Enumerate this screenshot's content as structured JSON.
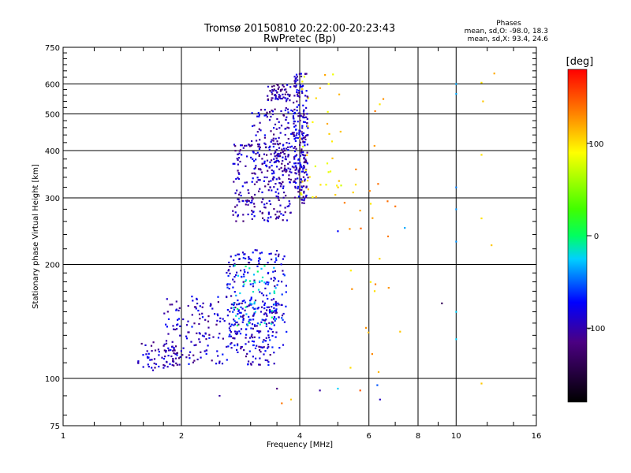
{
  "chart_data": {
    "type": "scatter",
    "title": "Tromsø 20150810 20:22:00-20:23:43",
    "subtitle": "RwPretec (Bp)",
    "xlabel": "Frequency [MHz]",
    "ylabel": "Stationary phase Virtual Height [km]",
    "x_scale": "log",
    "y_scale": "log",
    "xlim": [
      1,
      16
    ],
    "ylim": [
      75,
      750
    ],
    "x_ticks": [
      "1",
      "2",
      "4",
      "6",
      "8",
      "10",
      "16"
    ],
    "x_tick_values": [
      1,
      2,
      4,
      6,
      8,
      10,
      16
    ],
    "y_ticks": [
      "75",
      "100",
      "200",
      "300",
      "400",
      "500",
      "600",
      "750"
    ],
    "y_tick_values": [
      75,
      100,
      200,
      300,
      400,
      500,
      600,
      750
    ],
    "grid": true,
    "phase_info": {
      "heading": "Phases",
      "line_o": "mean, sd,O: -98.0, 18.3",
      "line_x": "mean, sd,X:  93.4, 24.6"
    },
    "colorbar": {
      "label": "[deg]",
      "range": [
        -180,
        180
      ],
      "tick_labels": [
        "100",
        "0",
        "-100"
      ],
      "tick_values": [
        100,
        0,
        -100
      ]
    },
    "series_clusters": [
      {
        "x_range": [
          1.55,
          2.0
        ],
        "y_range": [
          105,
          125
        ],
        "count": 60,
        "phase": -105
      },
      {
        "x_range": [
          1.8,
          3.5
        ],
        "y_range": [
          108,
          165
        ],
        "count": 260,
        "phase": -98
      },
      {
        "x_range": [
          2.6,
          3.7
        ],
        "y_range": [
          120,
          220
        ],
        "count": 230,
        "phase": -88
      },
      {
        "x_range": [
          2.7,
          3.5
        ],
        "y_range": [
          138,
          200
        ],
        "count": 50,
        "phase": -20
      },
      {
        "x_range": [
          2.7,
          3.8
        ],
        "y_range": [
          260,
          420
        ],
        "count": 260,
        "phase": -105
      },
      {
        "x_range": [
          3.0,
          4.15
        ],
        "y_range": [
          350,
          520
        ],
        "count": 150,
        "phase": -100
      },
      {
        "x_range": [
          3.85,
          4.2
        ],
        "y_range": [
          290,
          640
        ],
        "count": 200,
        "phase": -100
      },
      {
        "x_range": [
          3.3,
          3.8
        ],
        "y_range": [
          540,
          600
        ],
        "count": 60,
        "phase": -110
      },
      {
        "x_range": [
          4.0,
          5.1
        ],
        "y_range": [
          300,
          640
        ],
        "count": 40,
        "phase": 100
      },
      {
        "x_range": [
          5.0,
          6.8
        ],
        "y_range": [
          100,
          600
        ],
        "count": 30,
        "phase": 120
      }
    ],
    "isolated_points": [
      {
        "x": 10.0,
        "y": 600,
        "phase": -40
      },
      {
        "x": 10.0,
        "y": 565,
        "phase": -40
      },
      {
        "x": 11.6,
        "y": 605,
        "phase": 100
      },
      {
        "x": 12.5,
        "y": 640,
        "phase": 120
      },
      {
        "x": 11.7,
        "y": 540,
        "phase": 110
      },
      {
        "x": 10.0,
        "y": 320,
        "phase": -50
      },
      {
        "x": 10.0,
        "y": 280,
        "phase": -45
      },
      {
        "x": 10.0,
        "y": 230,
        "phase": -45
      },
      {
        "x": 11.6,
        "y": 265,
        "phase": 100
      },
      {
        "x": 12.3,
        "y": 225,
        "phase": 110
      },
      {
        "x": 11.6,
        "y": 390,
        "phase": 100
      },
      {
        "x": 9.2,
        "y": 158,
        "phase": -140
      },
      {
        "x": 10.0,
        "y": 150,
        "phase": -30
      },
      {
        "x": 10.0,
        "y": 127,
        "phase": -30
      },
      {
        "x": 11.6,
        "y": 97,
        "phase": 110
      },
      {
        "x": 6.3,
        "y": 96,
        "phase": -60
      },
      {
        "x": 5.0,
        "y": 94,
        "phase": -30
      },
      {
        "x": 4.5,
        "y": 93,
        "phase": -110
      },
      {
        "x": 3.5,
        "y": 94,
        "phase": -120
      },
      {
        "x": 3.6,
        "y": 86,
        "phase": 140
      },
      {
        "x": 3.8,
        "y": 88,
        "phase": 110
      },
      {
        "x": 2.5,
        "y": 90,
        "phase": -110
      },
      {
        "x": 5.7,
        "y": 93,
        "phase": 150
      },
      {
        "x": 6.4,
        "y": 88,
        "phase": -100
      },
      {
        "x": 7.0,
        "y": 285,
        "phase": 140
      },
      {
        "x": 7.4,
        "y": 250,
        "phase": -40
      },
      {
        "x": 7.2,
        "y": 133,
        "phase": 110
      },
      {
        "x": 5.0,
        "y": 245,
        "phase": -80
      }
    ]
  }
}
